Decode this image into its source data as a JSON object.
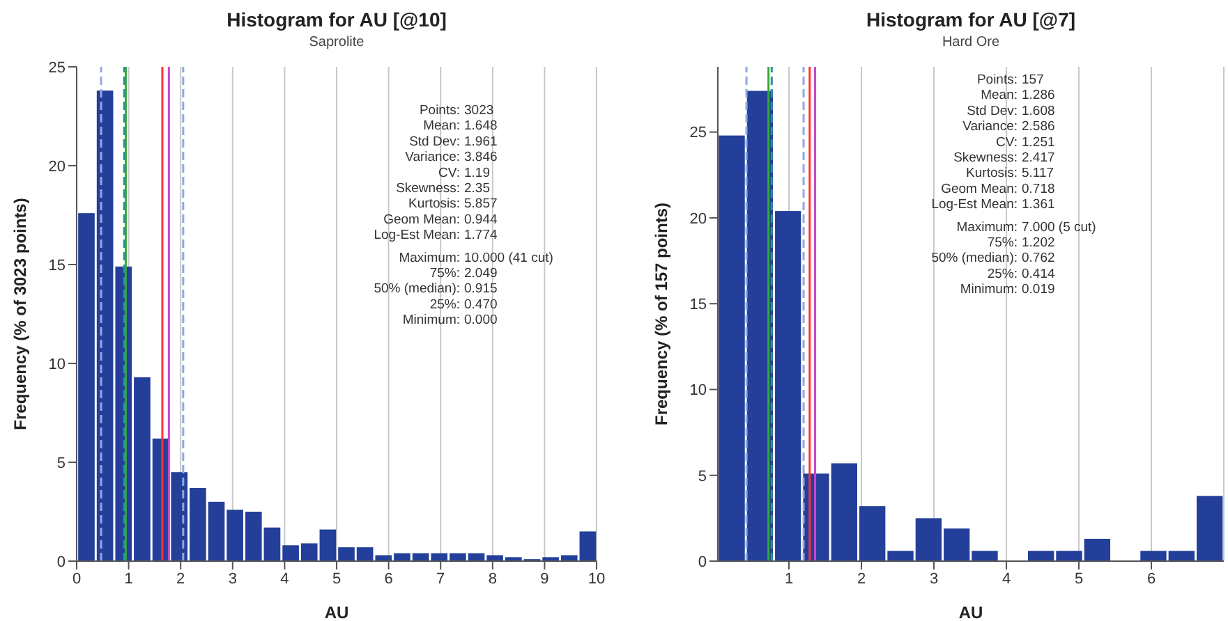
{
  "chart_data": [
    {
      "type": "histogram",
      "title": "Histogram for AU [@10]",
      "subtitle": "Saprolite",
      "xlabel": "AU",
      "ylabel": "Frequency (% of 3023 points)",
      "bins": [
        0,
        0.357,
        0.714,
        1.071,
        1.429,
        1.786,
        2.143,
        2.5,
        2.857,
        3.214,
        3.571,
        3.929,
        4.286,
        4.643,
        5,
        5.357,
        5.714,
        6.071,
        6.429,
        6.786,
        7.143,
        7.5,
        7.857,
        8.214,
        8.571,
        8.929,
        9.286,
        9.643,
        10
      ],
      "values": [
        17.6,
        23.8,
        14.9,
        9.3,
        6.2,
        4.5,
        3.7,
        3.0,
        2.6,
        2.5,
        1.7,
        0.8,
        0.9,
        1.6,
        0.7,
        0.7,
        0.3,
        0.4,
        0.4,
        0.4,
        0.4,
        0.4,
        0.3,
        0.2,
        0.1,
        0.2,
        0.3,
        1.5
      ],
      "color": "#233f9a",
      "xlim": [
        0,
        10
      ],
      "xticks": [
        0,
        1,
        2,
        3,
        4,
        5,
        6,
        7,
        8,
        9,
        10
      ],
      "ylim": [
        0,
        25
      ],
      "yticks": [
        0,
        5,
        10,
        15,
        20,
        25
      ],
      "grid": "x",
      "ref_lines": [
        {
          "axis": "x",
          "value": 0.47,
          "color": "#8fa8e0",
          "line_style": "dashed"
        },
        {
          "axis": "x",
          "value": 0.915,
          "color": "#2a8fa0",
          "line_style": "dashed"
        },
        {
          "axis": "x",
          "value": 0.944,
          "color": "#33aa33",
          "line_style": "solid"
        },
        {
          "axis": "x",
          "value": 1.648,
          "color": "#ff3333",
          "line_style": "solid"
        },
        {
          "axis": "x",
          "value": 1.774,
          "color": "#cc44cc",
          "line_style": "solid"
        },
        {
          "axis": "x",
          "value": 2.049,
          "color": "#8fa8e0",
          "line_style": "dashed"
        }
      ],
      "annotations": [
        "Points: 3023",
        "Mean: 1.648",
        "Std Dev: 1.961",
        "Variance: 3.846",
        "CV: 1.19",
        "Skewness: 2.35",
        "Kurtosis: 5.857",
        "Geom Mean: 0.944",
        "Log-Est Mean: 1.774",
        "Maximum: 10.000 (41 cut)",
        "75%: 2.049",
        "50% (median): 0.915",
        "25%: 0.470",
        "Minimum: 0.000"
      ]
    },
    {
      "type": "histogram",
      "title": "Histogram for AU [@7]",
      "subtitle": "Hard Ore",
      "xlabel": "AU",
      "ylabel": "Frequency (% of 157 points)",
      "bins": [
        0.019,
        0.407,
        0.795,
        1.182,
        1.57,
        1.958,
        2.346,
        2.734,
        3.122,
        3.509,
        3.897,
        4.285,
        4.673,
        5.061,
        5.449,
        5.836,
        6.224,
        6.612,
        7
      ],
      "values": [
        24.8,
        27.4,
        20.4,
        5.1,
        5.7,
        3.2,
        0.6,
        2.5,
        1.9,
        0.6,
        0,
        0.6,
        0.6,
        1.3,
        0,
        0.6,
        0.6,
        3.8
      ],
      "color": "#233f9a",
      "xlim": [
        0.019,
        7
      ],
      "xticks": [
        1,
        2,
        3,
        4,
        5,
        6
      ],
      "ylim": [
        0,
        28.8
      ],
      "yticks": [
        0,
        5,
        10,
        15,
        20,
        25
      ],
      "grid": "x",
      "ref_lines": [
        {
          "axis": "x",
          "value": 0.414,
          "color": "#8fa8e0",
          "line_style": "dashed"
        },
        {
          "axis": "x",
          "value": 0.718,
          "color": "#33aa33",
          "line_style": "solid"
        },
        {
          "axis": "x",
          "value": 0.762,
          "color": "#2a8fa0",
          "line_style": "dashed"
        },
        {
          "axis": "x",
          "value": 1.202,
          "color": "#8fa8e0",
          "line_style": "dashed"
        },
        {
          "axis": "x",
          "value": 1.286,
          "color": "#ff3333",
          "line_style": "solid"
        },
        {
          "axis": "x",
          "value": 1.361,
          "color": "#cc44cc",
          "line_style": "solid"
        }
      ],
      "annotations": [
        "Points: 157",
        "Mean: 1.286",
        "Std Dev: 1.608",
        "Variance: 2.586",
        "CV: 1.251",
        "Skewness: 2.417",
        "Kurtosis: 5.117",
        "Geom Mean: 0.718",
        "Log-Est Mean: 1.361",
        "Maximum: 7.000 (5 cut)",
        "75%: 1.202",
        "50% (median): 0.762",
        "25%: 0.414",
        "Minimum: 0.019"
      ]
    }
  ]
}
